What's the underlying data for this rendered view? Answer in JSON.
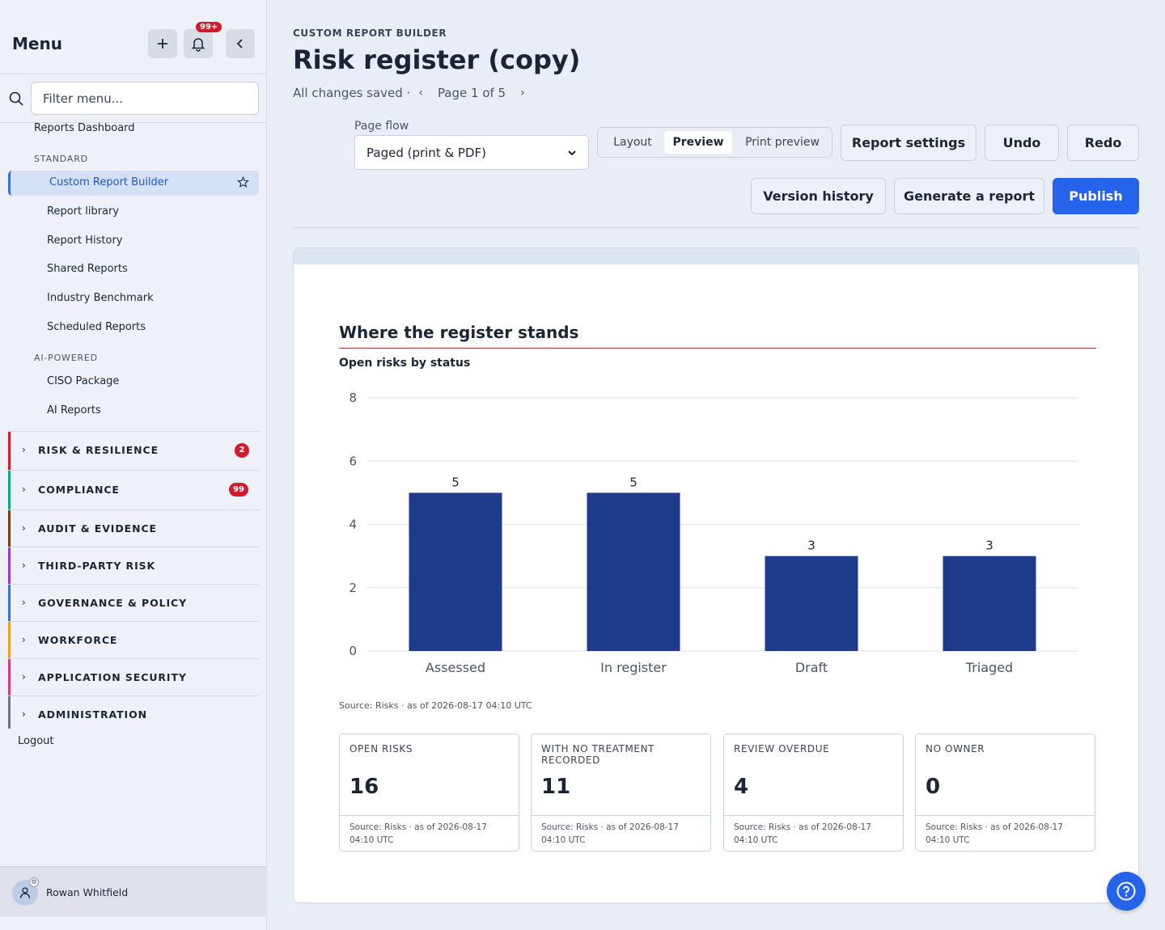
{
  "sidebar": {
    "title": "Menu",
    "bell_badge": "99+",
    "filter_placeholder": "Filter menu...",
    "top_link": "Reports Dashboard",
    "standard_label": "STANDARD",
    "active_item": "Custom Report Builder",
    "standard_items": [
      "Report library",
      "Report History",
      "Shared Reports",
      "Industry Benchmark",
      "Scheduled Reports"
    ],
    "ai_label": "AI-POWERED",
    "ai_items": [
      "CISO Package",
      "AI Reports"
    ],
    "groups": [
      {
        "label": "RISK & RESILIENCE",
        "badge": "2",
        "color": "#d11b2c"
      },
      {
        "label": "COMPLIANCE",
        "badge": "99",
        "color": "#14a37f"
      },
      {
        "label": "AUDIT & EVIDENCE",
        "badge": "",
        "color": "#7a3b1d"
      },
      {
        "label": "THIRD-PARTY RISK",
        "badge": "",
        "color": "#8b3fd6"
      },
      {
        "label": "GOVERNANCE & POLICY",
        "badge": "",
        "color": "#3b6fd8"
      },
      {
        "label": "WORKFORCE",
        "badge": "",
        "color": "#e8a224"
      },
      {
        "label": "APPLICATION SECURITY",
        "badge": "",
        "color": "#d63a7a"
      },
      {
        "label": "ADMINISTRATION",
        "badge": "",
        "color": "#6b7482"
      }
    ],
    "logout": "Logout",
    "user_name": "Rowan Whitfield"
  },
  "header": {
    "kicker": "CUSTOM REPORT BUILDER",
    "title": "Risk register (copy)",
    "saved_status": "All changes saved ·",
    "page_indicator": "Page 1 of 5"
  },
  "toolbar": {
    "page_flow_label": "Page flow",
    "page_flow_value": "Paged (print & PDF)",
    "modes": [
      "Layout",
      "Preview",
      "Print preview"
    ],
    "active_mode": "Preview",
    "report_settings": "Report settings",
    "undo": "Undo",
    "redo": "Redo",
    "version_history": "Version history",
    "generate": "Generate a report",
    "publish": "Publish"
  },
  "section": {
    "title": "Where the register stands",
    "chart_title": "Open risks by status",
    "source": "Source: Risks · as of 2026-08-17 04:10 UTC"
  },
  "chart_data": {
    "type": "bar",
    "title": "Open risks by status",
    "categories": [
      "Assessed",
      "In register",
      "Draft",
      "Triaged"
    ],
    "values": [
      5,
      5,
      3,
      3
    ],
    "ylim": [
      0,
      8
    ],
    "yticks": [
      0,
      2,
      4,
      6,
      8
    ],
    "bar_color": "#1e3a8a",
    "grid": true
  },
  "kpis": [
    {
      "label": "OPEN RISKS",
      "value": "16",
      "source": "Source: Risks · as of 2026-08-17 04:10 UTC"
    },
    {
      "label": "WITH NO TREATMENT RECORDED",
      "value": "11",
      "source": "Source: Risks · as of 2026-08-17 04:10 UTC"
    },
    {
      "label": "REVIEW OVERDUE",
      "value": "4",
      "source": "Source: Risks · as of 2026-08-17 04:10 UTC"
    },
    {
      "label": "NO OWNER",
      "value": "0",
      "source": "Source: Risks · as of 2026-08-17 04:10 UTC"
    }
  ]
}
